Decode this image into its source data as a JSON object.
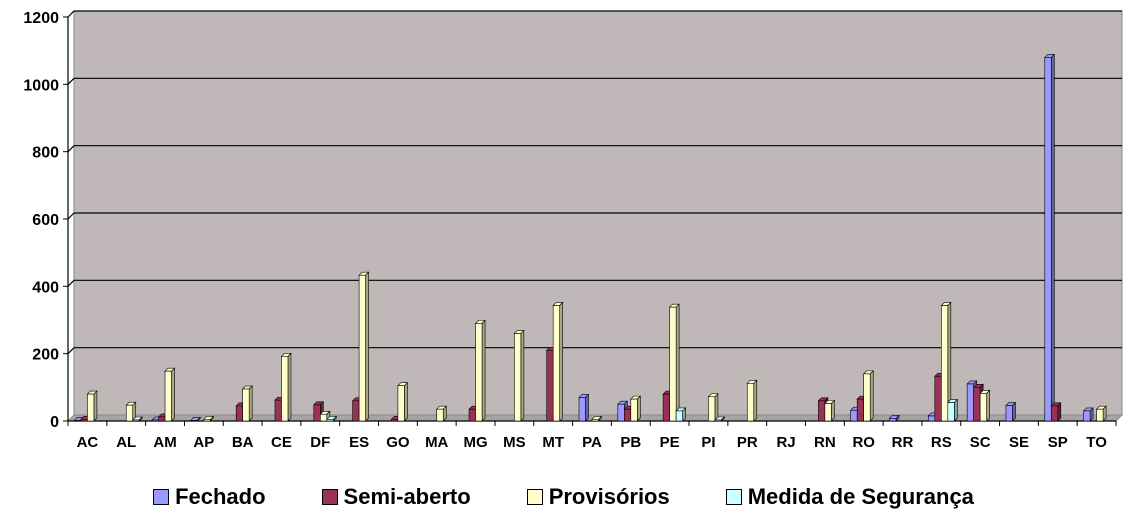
{
  "chart_data": {
    "type": "bar",
    "categories": [
      "AC",
      "AL",
      "AM",
      "AP",
      "BA",
      "CE",
      "DF",
      "ES",
      "GO",
      "MA",
      "MG",
      "MS",
      "MT",
      "PA",
      "PB",
      "PE",
      "PI",
      "PR",
      "RJ",
      "RN",
      "RO",
      "RR",
      "RS",
      "SC",
      "SE",
      "SP",
      "TO"
    ],
    "series": [
      {
        "name": "Fechado",
        "color": "#9999ff",
        "values": [
          2,
          0,
          3,
          2,
          0,
          0,
          0,
          0,
          0,
          0,
          0,
          0,
          0,
          70,
          50,
          0,
          0,
          0,
          0,
          0,
          32,
          8,
          15,
          110,
          46,
          1080,
          30
        ]
      },
      {
        "name": "Semi-aberto",
        "color": "#993355",
        "values": [
          5,
          0,
          12,
          0,
          45,
          62,
          48,
          60,
          5,
          0,
          35,
          0,
          210,
          0,
          35,
          80,
          0,
          0,
          0,
          60,
          65,
          0,
          133,
          100,
          0,
          45,
          0
        ]
      },
      {
        "name": "Provisórios",
        "color": "#ffffcc",
        "values": [
          80,
          47,
          148,
          5,
          95,
          192,
          20,
          433,
          105,
          35,
          290,
          260,
          343,
          5,
          65,
          338,
          72,
          112,
          0,
          52,
          140,
          0,
          343,
          82,
          0,
          0,
          35
        ]
      },
      {
        "name": "Medida de Segurança",
        "color": "#ccffff",
        "values": [
          0,
          3,
          0,
          0,
          0,
          0,
          5,
          0,
          0,
          0,
          0,
          0,
          0,
          0,
          0,
          30,
          3,
          0,
          0,
          0,
          0,
          0,
          55,
          0,
          0,
          0,
          0
        ]
      }
    ],
    "ylim": [
      0,
      1200
    ],
    "yticks": [
      0,
      200,
      400,
      600,
      800,
      1000,
      1200
    ],
    "grid": true,
    "legend_position": "bottom"
  }
}
